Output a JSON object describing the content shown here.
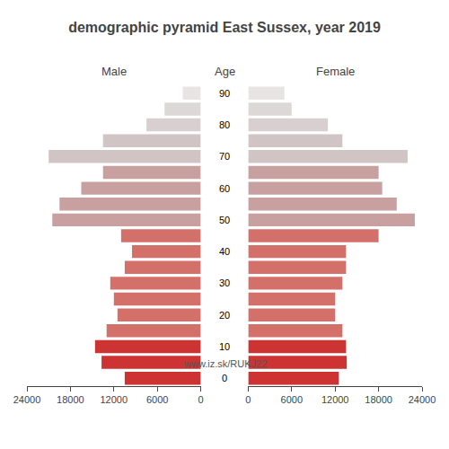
{
  "chart_data": {
    "type": "bar",
    "orientation": "horizontal",
    "title": "demographic pyramid East Sussex, year 2019",
    "ylabel": "Age",
    "annotations": [
      "www.iz.sk/RUKJ22"
    ],
    "categories": [
      "0",
      null,
      "10",
      null,
      "20",
      null,
      "30",
      null,
      "40",
      null,
      "50",
      null,
      "60",
      null,
      "70",
      null,
      "80",
      null,
      "90"
    ],
    "series": [
      {
        "name": "Male",
        "values": [
          10500,
          13700,
          14600,
          13000,
          11500,
          12000,
          12500,
          10500,
          9500,
          11000,
          20500,
          19500,
          16500,
          13500,
          21000,
          13500,
          7500,
          5000,
          2500
        ],
        "colors": [
          "#cd3333",
          "#cd3333",
          "#cd3333",
          "#d4706a",
          "#d4706a",
          "#d4706a",
          "#d4706a",
          "#d4706a",
          "#d4706a",
          "#d4706a",
          "#c9a0a0",
          "#c9a0a0",
          "#c9a0a0",
          "#c9a0a0",
          "#d0c4c4",
          "#d0c4c4",
          "#d8d0d0",
          "#ddd8d8",
          "#e8e4e4"
        ]
      },
      {
        "name": "Female",
        "values": [
          12500,
          13600,
          13500,
          13000,
          12000,
          12000,
          13000,
          13500,
          13500,
          18000,
          23000,
          20500,
          18500,
          18000,
          22000,
          13000,
          11000,
          6000,
          5000
        ],
        "colors": [
          "#cd3333",
          "#cd3333",
          "#cd3333",
          "#d4706a",
          "#d4706a",
          "#d4706a",
          "#d4706a",
          "#d4706a",
          "#d4706a",
          "#d4706a",
          "#c9a0a0",
          "#c9a0a0",
          "#c9a0a0",
          "#c9a0a0",
          "#d0c4c4",
          "#d0c4c4",
          "#d8d0d0",
          "#ddd8d8",
          "#e8e4e4"
        ]
      }
    ],
    "xlim": [
      0,
      24000
    ],
    "xticks": [
      0,
      6000,
      12000,
      18000,
      24000
    ],
    "grid": false
  }
}
